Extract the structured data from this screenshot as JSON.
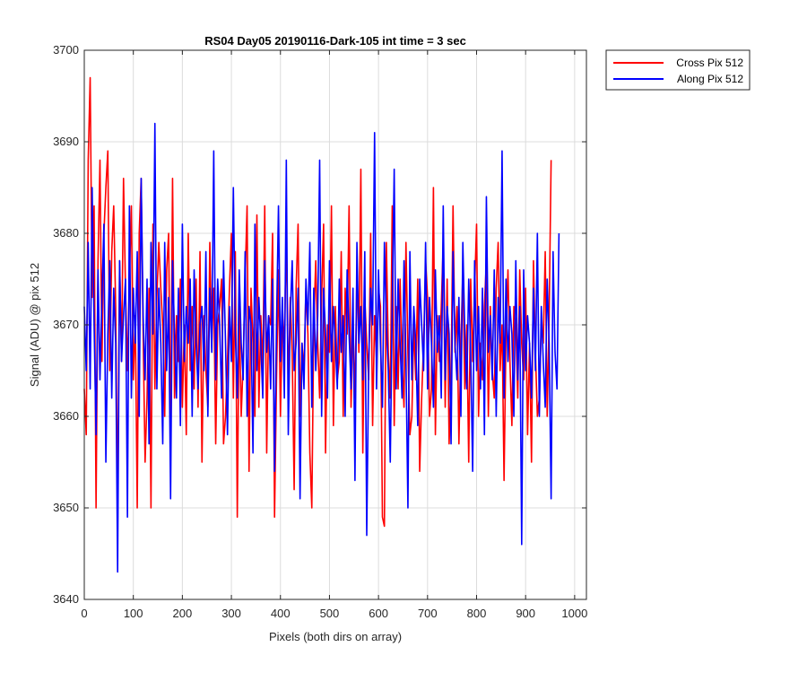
{
  "chart_data": {
    "type": "line",
    "title": "RS04 Day05 20190116-Dark-105 int time = 3 sec",
    "xlabel": "Pixels (both dirs on array)",
    "ylabel": "Signal (ADU) @ pix 512",
    "xlim": [
      0,
      1024
    ],
    "ylim": [
      3640,
      3700
    ],
    "xticks": [
      0,
      100,
      200,
      300,
      400,
      500,
      600,
      700,
      800,
      900,
      1000
    ],
    "yticks": [
      3640,
      3650,
      3660,
      3670,
      3680,
      3690,
      3700
    ],
    "grid": true,
    "legend_position": "outside-top-right",
    "sample_step": 4,
    "series": [
      {
        "name": "Cross Pix 512",
        "color": "#ff0000",
        "values": [
          3663,
          3658,
          3688,
          3697,
          3673,
          3683,
          3650,
          3677,
          3688,
          3666,
          3680,
          3685,
          3689,
          3665,
          3678,
          3683,
          3672,
          3650,
          3677,
          3666,
          3686,
          3674,
          3665,
          3675,
          3683,
          3664,
          3671,
          3650,
          3680,
          3686,
          3669,
          3655,
          3662,
          3674,
          3650,
          3681,
          3663,
          3673,
          3679,
          3674,
          3670,
          3660,
          3676,
          3680,
          3657,
          3686,
          3662,
          3671,
          3666,
          3675,
          3661,
          3670,
          3658,
          3680,
          3665,
          3672,
          3663,
          3675,
          3661,
          3678,
          3655,
          3671,
          3665,
          3661,
          3679,
          3668,
          3674,
          3657,
          3670,
          3672,
          3675,
          3657,
          3660,
          3666,
          3674,
          3680,
          3662,
          3678,
          3649,
          3672,
          3660,
          3666,
          3675,
          3683,
          3654,
          3674,
          3668,
          3660,
          3682,
          3661,
          3671,
          3665,
          3683,
          3656,
          3671,
          3670,
          3680,
          3649,
          3664,
          3676,
          3660,
          3671,
          3668,
          3680,
          3663,
          3673,
          3667,
          3652,
          3674,
          3681,
          3660,
          3668,
          3665,
          3674,
          3669,
          3656,
          3650,
          3670,
          3677,
          3668,
          3662,
          3673,
          3681,
          3656,
          3670,
          3667,
          3683,
          3659,
          3672,
          3664,
          3666,
          3678,
          3660,
          3674,
          3669,
          3683,
          3661,
          3670,
          3662,
          3676,
          3667,
          3687,
          3656,
          3673,
          3668,
          3664,
          3680,
          3659,
          3671,
          3666,
          3674,
          3672,
          3649,
          3648,
          3679,
          3667,
          3662,
          3683,
          3659,
          3672,
          3663,
          3675,
          3666,
          3661,
          3679,
          3667,
          3658,
          3660,
          3670,
          3664,
          3675,
          3654,
          3662,
          3668,
          3677,
          3673,
          3660,
          3663,
          3685,
          3658,
          3671,
          3666,
          3672,
          3679,
          3661,
          3675,
          3657,
          3664,
          3683,
          3667,
          3672,
          3657,
          3668,
          3676,
          3663,
          3670,
          3655,
          3675,
          3666,
          3674,
          3681,
          3660,
          3668,
          3664,
          3672,
          3677,
          3660,
          3672,
          3665,
          3662,
          3674,
          3679,
          3665,
          3670,
          3653,
          3669,
          3676,
          3666,
          3659,
          3672,
          3670,
          3662,
          3676,
          3668,
          3664,
          3674,
          3658,
          3668,
          3655,
          3677,
          3667,
          3660,
          3662,
          3670,
          3668,
          3678,
          3660,
          3671,
          3688
        ]
      },
      {
        "name": "Along Pix 512",
        "color": "#0000ff",
        "values": [
          3672,
          3665,
          3679,
          3663,
          3685,
          3670,
          3658,
          3676,
          3664,
          3673,
          3681,
          3655,
          3669,
          3677,
          3662,
          3674,
          3668,
          3643,
          3677,
          3666,
          3671,
          3675,
          3649,
          3683,
          3662,
          3674,
          3668,
          3678,
          3660,
          3686,
          3671,
          3664,
          3675,
          3657,
          3679,
          3669,
          3692,
          3663,
          3674,
          3668,
          3657,
          3679,
          3665,
          3673,
          3651,
          3677,
          3669,
          3662,
          3674,
          3659,
          3681,
          3666,
          3672,
          3668,
          3675,
          3660,
          3676,
          3668,
          3663,
          3670,
          3672,
          3665,
          3678,
          3660,
          3674,
          3667,
          3689,
          3664,
          3675,
          3670,
          3662,
          3677,
          3668,
          3658,
          3672,
          3666,
          3685,
          3669,
          3662,
          3676,
          3668,
          3664,
          3678,
          3660,
          3672,
          3670,
          3656,
          3681,
          3665,
          3673,
          3668,
          3662,
          3677,
          3667,
          3671,
          3663,
          3675,
          3654,
          3670,
          3683,
          3666,
          3673,
          3662,
          3688,
          3658,
          3671,
          3677,
          3665,
          3668,
          3674,
          3651,
          3668,
          3663,
          3675,
          3670,
          3679,
          3661,
          3674,
          3665,
          3671,
          3688,
          3660,
          3674,
          3669,
          3662,
          3677,
          3666,
          3672,
          3668,
          3663,
          3675,
          3667,
          3671,
          3660,
          3676,
          3669,
          3663,
          3674,
          3653,
          3679,
          3668,
          3672,
          3664,
          3678,
          3647,
          3666,
          3674,
          3670,
          3691,
          3663,
          3676,
          3668,
          3661,
          3679,
          3670,
          3665,
          3655,
          3672,
          3687,
          3663,
          3675,
          3668,
          3662,
          3677,
          3666,
          3650,
          3678,
          3664,
          3672,
          3668,
          3659,
          3675,
          3670,
          3665,
          3679,
          3663,
          3673,
          3668,
          3661,
          3676,
          3667,
          3671,
          3662,
          3683,
          3664,
          3672,
          3669,
          3657,
          3678,
          3668,
          3664,
          3673,
          3660,
          3679,
          3669,
          3663,
          3675,
          3667,
          3654,
          3677,
          3665,
          3672,
          3663,
          3674,
          3658,
          3684,
          3667,
          3671,
          3664,
          3676,
          3660,
          3673,
          3668,
          3689,
          3662,
          3675,
          3666,
          3672,
          3669,
          3660,
          3677,
          3664,
          3672,
          3646,
          3676,
          3665,
          3671,
          3668,
          3662,
          3674,
          3665,
          3680,
          3660,
          3672,
          3666,
          3661,
          3675,
          3668,
          3651,
          3678,
          3667,
          3663,
          3680
        ]
      }
    ]
  }
}
